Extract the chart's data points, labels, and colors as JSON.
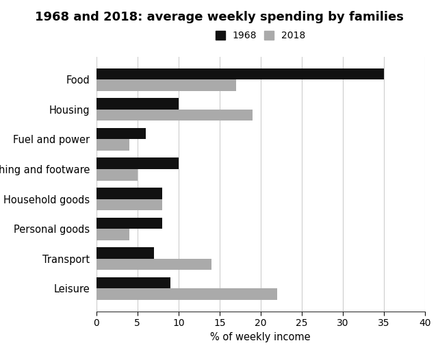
{
  "title": "1968 and 2018: average weekly spending by families",
  "xlabel": "% of weekly income",
  "categories": [
    "Food",
    "Housing",
    "Fuel and power",
    "Clothing and footware",
    "Household goods",
    "Personal goods",
    "Transport",
    "Leisure"
  ],
  "values_1968": [
    35,
    10,
    6,
    10,
    8,
    8,
    7,
    9
  ],
  "values_2018": [
    17,
    19,
    4,
    5,
    8,
    4,
    14,
    22
  ],
  "color_1968": "#111111",
  "color_2018": "#aaaaaa",
  "legend_labels": [
    "1968",
    "2018"
  ],
  "xlim": [
    0,
    40
  ],
  "xticks": [
    0,
    5,
    10,
    15,
    20,
    25,
    30,
    35,
    40
  ],
  "bar_height": 0.38,
  "title_fontsize": 13,
  "label_fontsize": 10.5,
  "tick_fontsize": 10,
  "legend_fontsize": 10,
  "background_color": "#ffffff"
}
